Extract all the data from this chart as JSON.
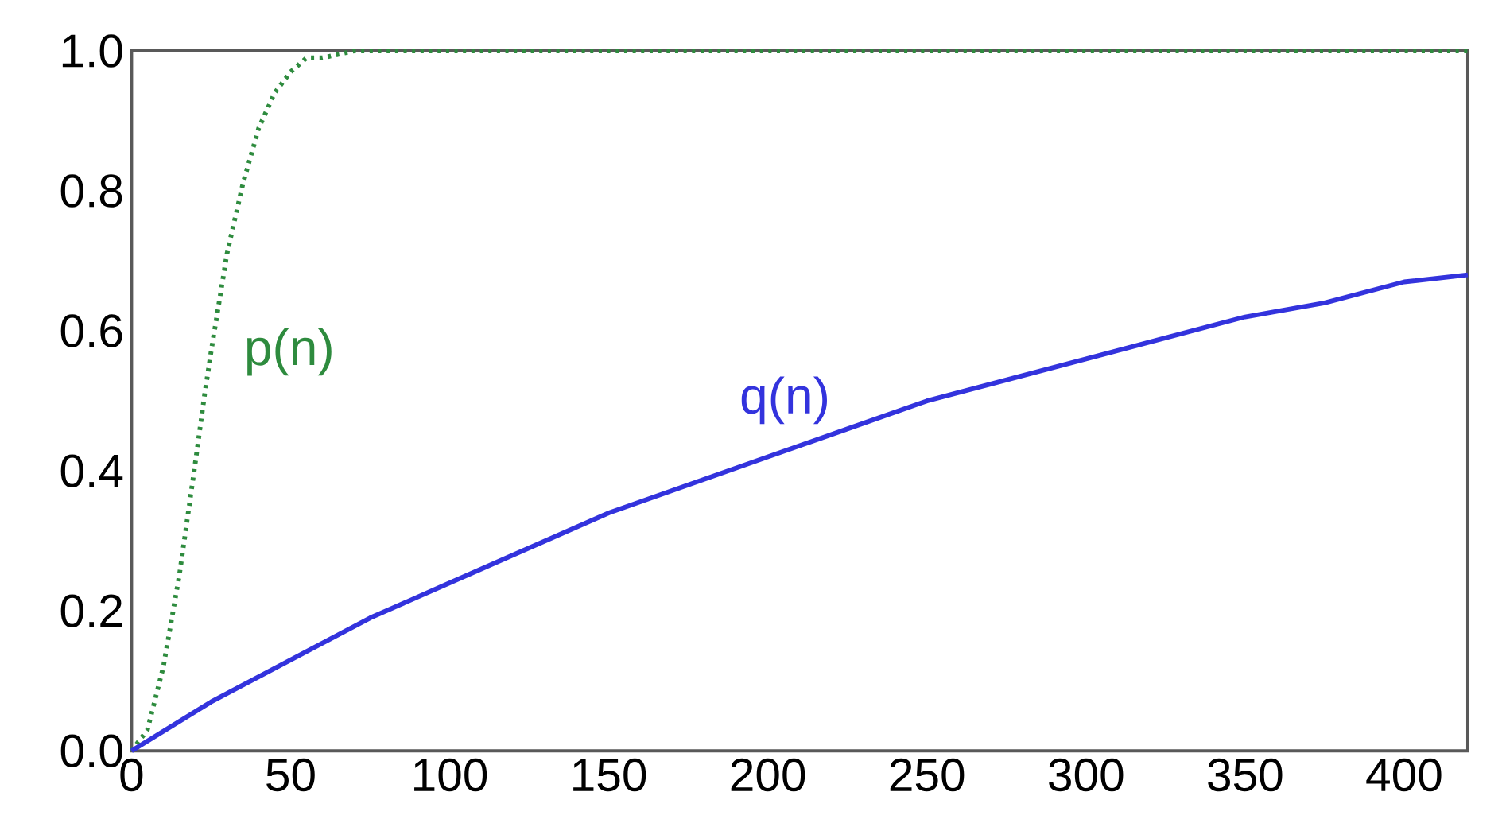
{
  "chart_data": {
    "type": "line",
    "xlim": [
      0,
      420
    ],
    "ylim": [
      0,
      1
    ],
    "xticks": [
      0,
      50,
      100,
      150,
      200,
      250,
      300,
      350,
      400
    ],
    "yticks": [
      {
        "value": 0,
        "label": "0.0"
      },
      0.2,
      0.4,
      0.6,
      0.8,
      {
        "value": 1,
        "label": "1.0"
      }
    ],
    "grid": false,
    "legend": false,
    "marker": "none",
    "series": [
      {
        "name": "p(n)",
        "color": "#2e8b3e",
        "line_style": "dotted",
        "x": [
          0,
          5,
          10,
          15,
          20,
          23,
          25,
          30,
          35,
          40,
          45,
          50,
          55,
          60,
          70,
          80,
          100,
          150,
          200,
          250,
          300,
          350,
          400,
          420
        ],
        "values": [
          0,
          0.03,
          0.12,
          0.25,
          0.41,
          0.51,
          0.57,
          0.71,
          0.81,
          0.89,
          0.94,
          0.97,
          0.99,
          0.99,
          1,
          1,
          1,
          1,
          1,
          1,
          1,
          1,
          1,
          1
        ]
      },
      {
        "name": "q(n)",
        "color": "#3333dd",
        "line_style": "solid",
        "x": [
          0,
          25,
          50,
          75,
          100,
          125,
          150,
          175,
          200,
          225,
          250,
          275,
          300,
          325,
          350,
          375,
          400,
          420
        ],
        "values": [
          0,
          0.07,
          0.13,
          0.19,
          0.24,
          0.29,
          0.34,
          0.38,
          0.42,
          0.46,
          0.5,
          0.53,
          0.56,
          0.59,
          0.62,
          0.64,
          0.67,
          0.68
        ]
      }
    ]
  }
}
